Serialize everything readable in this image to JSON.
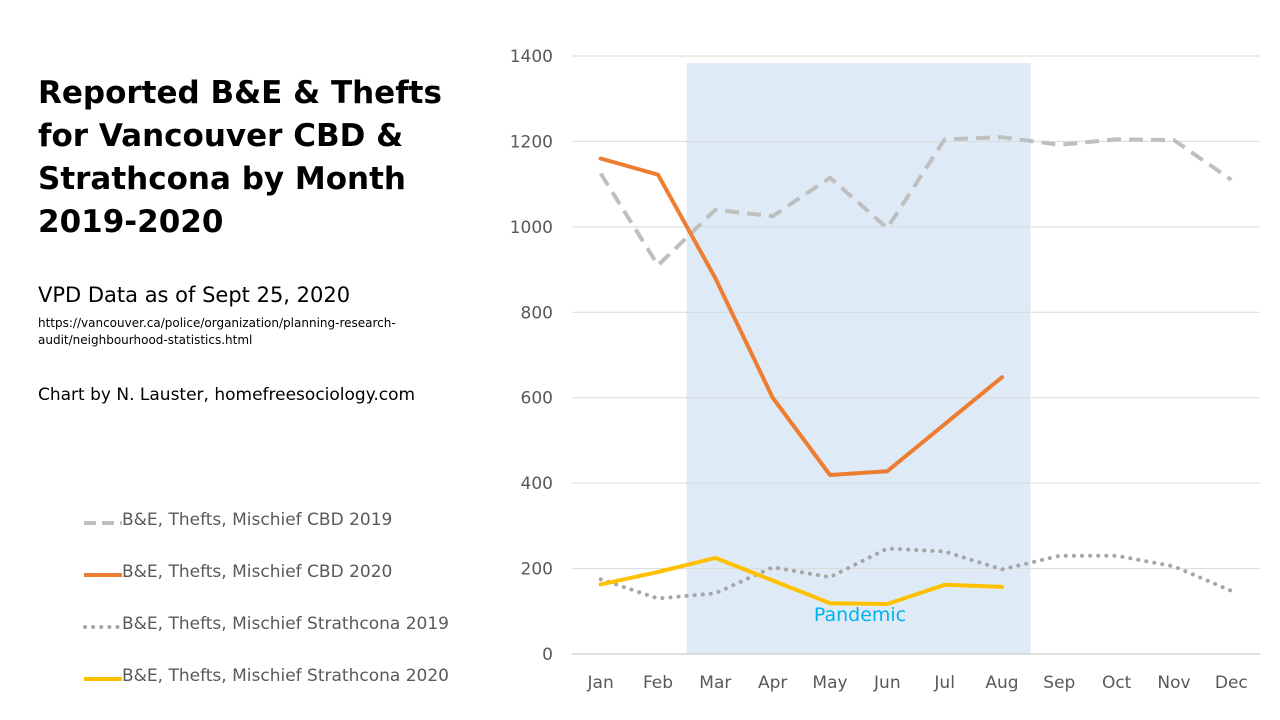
{
  "title": "Reported B&E & Thefts for Vancouver CBD & Strathcona by Month 2019-2020",
  "subtitle": "VPD Data as of Sept 25, 2020",
  "source_url": "https://vancouver.ca/police/organization/planning-research-audit/neighbourhood-statistics.html",
  "credit": "Chart by N. Lauster, homefreesociology.com",
  "chart_data": {
    "type": "line",
    "categories": [
      "Jan",
      "Feb",
      "Mar",
      "Apr",
      "May",
      "Jun",
      "Jul",
      "Aug",
      "Sep",
      "Oct",
      "Nov",
      "Dec"
    ],
    "ylim": [
      0,
      1400
    ],
    "yticks": [
      0,
      200,
      400,
      600,
      800,
      1000,
      1200,
      1400
    ],
    "grid": true,
    "shaded_region": {
      "from": "Mar",
      "to": "Aug",
      "label": "Pandemic",
      "color": "#deebf7",
      "label_color": "#00b0f0"
    },
    "series": [
      {
        "name": "B&E, Thefts, Mischief CBD 2019",
        "color": "#bfbfbf",
        "style": "dashed",
        "values": [
          1125,
          910,
          1040,
          1025,
          1115,
          997,
          1205,
          1210,
          1192,
          1205,
          1203,
          1110
        ]
      },
      {
        "name": "B&E, Thefts, Mischief CBD 2020",
        "color": "#ed7d31",
        "style": "solid",
        "values": [
          1160,
          1122,
          880,
          600,
          419,
          428,
          null,
          648,
          null,
          null,
          null,
          null
        ],
        "note_jul_interpolated": true
      },
      {
        "name": "B&E, Thefts, Mischief Strathcona 2019",
        "color": "#a6a6a6",
        "style": "dotted",
        "values": [
          175,
          130,
          142,
          203,
          180,
          247,
          240,
          198,
          230,
          230,
          205,
          148
        ]
      },
      {
        "name": "B&E, Thefts, Mischief Strathcona 2020",
        "color": "#ffc000",
        "style": "solid",
        "values": [
          163,
          192,
          225,
          172,
          119,
          117,
          162,
          157,
          null,
          null,
          null,
          null
        ]
      }
    ]
  }
}
